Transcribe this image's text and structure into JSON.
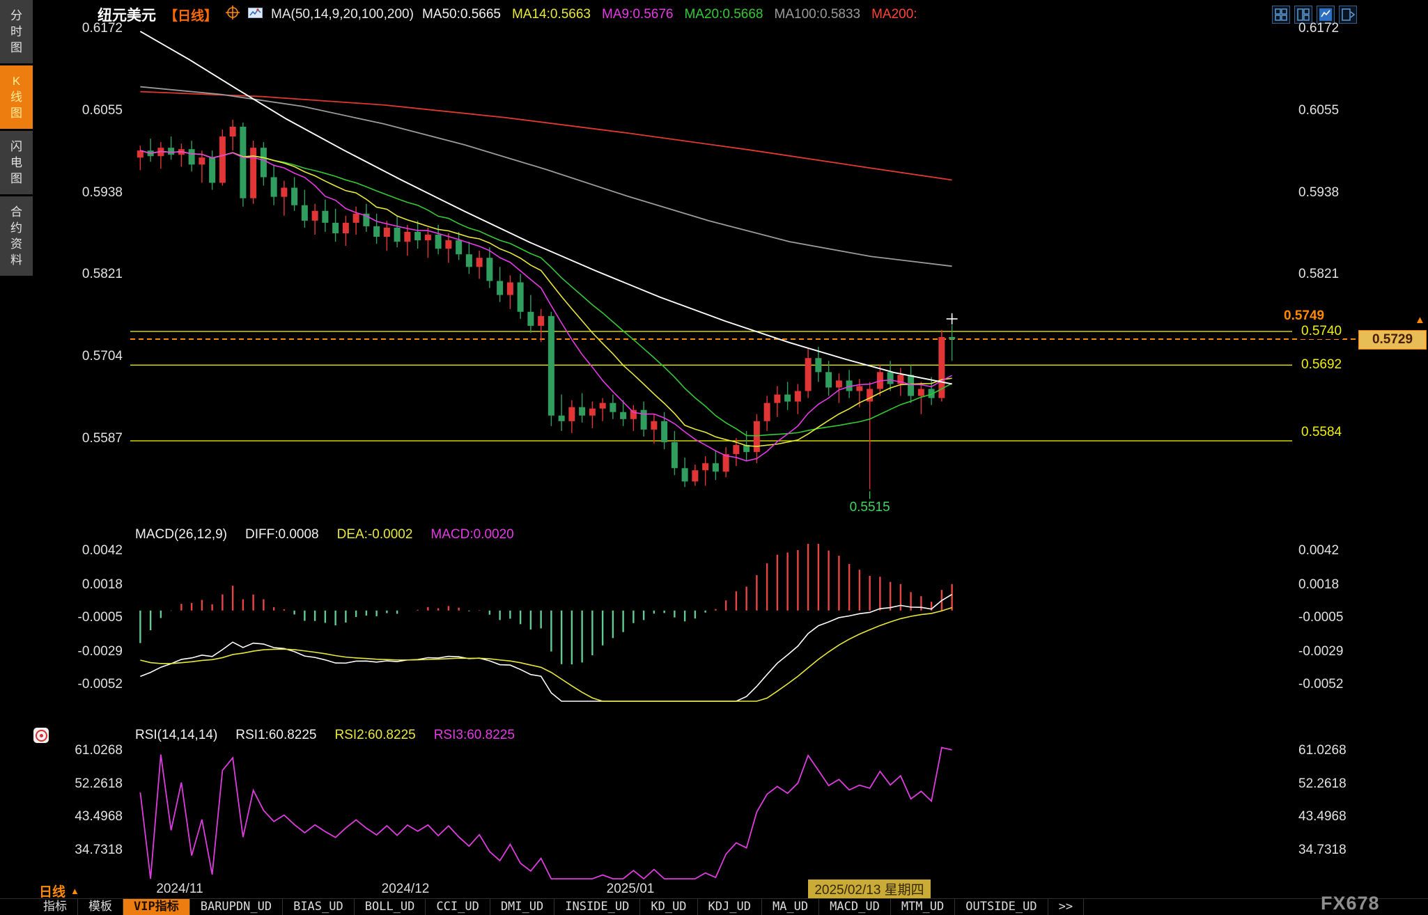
{
  "window": {
    "watermark": "FX678"
  },
  "sidebar": {
    "items": [
      {
        "label": "分时图",
        "active": false
      },
      {
        "label": "K线图",
        "active": true
      },
      {
        "label": "闪电图",
        "active": false
      },
      {
        "label": "合约资料",
        "active": false
      }
    ]
  },
  "header": {
    "symbol": "纽元美元",
    "period_tag": "【日线】",
    "ma_group_label": "MA(50,14,9,20,100,200)",
    "ma_items": [
      {
        "label": "MA50:0.5665",
        "color": "#f2f2f2"
      },
      {
        "label": "MA14:0.5663",
        "color": "#e8e83a"
      },
      {
        "label": "MA9:0.5676",
        "color": "#e53ae5"
      },
      {
        "label": "MA20:0.5668",
        "color": "#35c935"
      },
      {
        "label": "MA100:0.5833",
        "color": "#9b9b9b"
      },
      {
        "label": "MA200:",
        "color": "#ff4536"
      }
    ],
    "window_buttons": [
      {
        "icon": "layout-grid-icon"
      },
      {
        "icon": "layout-split-icon"
      },
      {
        "icon": "layout-active-icon"
      },
      {
        "icon": "layout-next-icon"
      }
    ]
  },
  "main_chart": {
    "y_ticks": [
      "0.6172",
      "0.6055",
      "0.5938",
      "0.5821",
      "0.5704",
      "0.5587"
    ],
    "levels": {
      "high_label": "0.5749",
      "resistance": "0.5740",
      "current": "0.5729",
      "pivot": "0.5692",
      "support": "0.5584",
      "low_label": "0.5515"
    }
  },
  "macd": {
    "title": "MACD(26,12,9)",
    "diff": "DIFF:0.0008",
    "dea": "DEA:-0.0002",
    "macd": "MACD:0.0020",
    "y_ticks": [
      "0.0042",
      "0.0018",
      "-0.0005",
      "-0.0029",
      "-0.0052"
    ]
  },
  "rsi": {
    "title": "RSI(14,14,14)",
    "rsi1": "RSI1:60.8225",
    "rsi2": "RSI2:60.8225",
    "rsi3": "RSI3:60.8225",
    "y_ticks": [
      "61.0268",
      "52.2618",
      "43.4968",
      "34.7318"
    ]
  },
  "time_axis": {
    "labels": [
      "2024/11",
      "2024/12",
      "2025/01"
    ],
    "current_date": "2025/02/13 星期四",
    "period_label": "日线",
    "period_arrow": "▲"
  },
  "toolbar": {
    "tabs": [
      {
        "label": "指标",
        "active": false
      },
      {
        "label": "模板",
        "active": false
      },
      {
        "label": "VIP指标",
        "active": true
      },
      {
        "label": "BARUPDN_UD",
        "active": false
      },
      {
        "label": "BIAS_UD",
        "active": false
      },
      {
        "label": "BOLL_UD",
        "active": false
      },
      {
        "label": "CCI_UD",
        "active": false
      },
      {
        "label": "DMI_UD",
        "active": false
      },
      {
        "label": "INSIDE_UD",
        "active": false
      },
      {
        "label": "KD_UD",
        "active": false
      },
      {
        "label": "KDJ_UD",
        "active": false
      },
      {
        "label": "MA_UD",
        "active": false
      },
      {
        "label": "MACD_UD",
        "active": false
      },
      {
        "label": "MTM_UD",
        "active": false
      },
      {
        "label": "OUTSIDE_UD",
        "active": false
      },
      {
        "label": ">>",
        "active": false
      }
    ]
  },
  "chart_data": {
    "type": "candlestick",
    "pair": "纽元美元 NZD/USD",
    "timeframe": "日线 daily",
    "candles": [
      [
        0.5988,
        0.6005,
        0.597,
        0.5998
      ],
      [
        0.5998,
        0.6015,
        0.5982,
        0.599
      ],
      [
        0.599,
        0.601,
        0.5972,
        0.6002
      ],
      [
        0.6002,
        0.6018,
        0.5985,
        0.5992
      ],
      [
        0.5992,
        0.6008,
        0.5975,
        0.6
      ],
      [
        0.6,
        0.6012,
        0.5968,
        0.5978
      ],
      [
        0.5978,
        0.5998,
        0.5952,
        0.5988
      ],
      [
        0.5988,
        0.5998,
        0.5942,
        0.5952
      ],
      [
        0.5952,
        0.6028,
        0.5948,
        0.6018
      ],
      [
        0.6018,
        0.6042,
        0.5998,
        0.6032
      ],
      [
        0.6032,
        0.6038,
        0.5918,
        0.593
      ],
      [
        0.593,
        0.6012,
        0.5922,
        0.6002
      ],
      [
        0.6002,
        0.601,
        0.5948,
        0.596
      ],
      [
        0.596,
        0.5978,
        0.592,
        0.5932
      ],
      [
        0.5932,
        0.5955,
        0.5905,
        0.5945
      ],
      [
        0.5945,
        0.596,
        0.5912,
        0.592
      ],
      [
        0.592,
        0.5942,
        0.5888,
        0.5898
      ],
      [
        0.5898,
        0.5922,
        0.5878,
        0.5912
      ],
      [
        0.5912,
        0.5928,
        0.5882,
        0.5895
      ],
      [
        0.5895,
        0.5915,
        0.5868,
        0.588
      ],
      [
        0.588,
        0.5905,
        0.5862,
        0.5895
      ],
      [
        0.5895,
        0.5918,
        0.5878,
        0.5908
      ],
      [
        0.5908,
        0.5922,
        0.5882,
        0.589
      ],
      [
        0.589,
        0.5908,
        0.5865,
        0.5875
      ],
      [
        0.5875,
        0.5898,
        0.5855,
        0.5888
      ],
      [
        0.5888,
        0.5905,
        0.586,
        0.5868
      ],
      [
        0.5868,
        0.5892,
        0.5848,
        0.5882
      ],
      [
        0.5882,
        0.5898,
        0.5858,
        0.587
      ],
      [
        0.587,
        0.5888,
        0.5845,
        0.5878
      ],
      [
        0.5878,
        0.5892,
        0.585,
        0.5858
      ],
      [
        0.5858,
        0.588,
        0.5838,
        0.587
      ],
      [
        0.587,
        0.5882,
        0.5842,
        0.585
      ],
      [
        0.585,
        0.5868,
        0.5822,
        0.5832
      ],
      [
        0.5832,
        0.5855,
        0.5815,
        0.5845
      ],
      [
        0.5845,
        0.586,
        0.5802,
        0.5812
      ],
      [
        0.5812,
        0.5832,
        0.5782,
        0.5792
      ],
      [
        0.5792,
        0.582,
        0.5772,
        0.581
      ],
      [
        0.581,
        0.5822,
        0.5758,
        0.5768
      ],
      [
        0.5768,
        0.5792,
        0.5738,
        0.5748
      ],
      [
        0.5748,
        0.5772,
        0.5725,
        0.5762
      ],
      [
        0.5762,
        0.5768,
        0.5605,
        0.562
      ],
      [
        0.562,
        0.565,
        0.5598,
        0.5612
      ],
      [
        0.5612,
        0.5642,
        0.5595,
        0.5632
      ],
      [
        0.5632,
        0.5652,
        0.561,
        0.562
      ],
      [
        0.562,
        0.564,
        0.5602,
        0.563
      ],
      [
        0.563,
        0.5645,
        0.5612,
        0.5638
      ],
      [
        0.5638,
        0.565,
        0.5615,
        0.5625
      ],
      [
        0.5625,
        0.5642,
        0.5605,
        0.5615
      ],
      [
        0.5615,
        0.5635,
        0.5598,
        0.5628
      ],
      [
        0.5628,
        0.564,
        0.559,
        0.56
      ],
      [
        0.56,
        0.5622,
        0.558,
        0.5612
      ],
      [
        0.5612,
        0.5625,
        0.5572,
        0.5582
      ],
      [
        0.5582,
        0.5598,
        0.5535,
        0.5545
      ],
      [
        0.5545,
        0.556,
        0.5518,
        0.5526
      ],
      [
        0.5526,
        0.555,
        0.552,
        0.5542
      ],
      [
        0.5542,
        0.5562,
        0.552,
        0.5552
      ],
      [
        0.5552,
        0.557,
        0.5528,
        0.554
      ],
      [
        0.554,
        0.5575,
        0.5532,
        0.5565
      ],
      [
        0.5565,
        0.5588,
        0.5548,
        0.5578
      ],
      [
        0.5578,
        0.5598,
        0.5555,
        0.5568
      ],
      [
        0.5568,
        0.5622,
        0.5552,
        0.5612
      ],
      [
        0.5612,
        0.5648,
        0.5598,
        0.5638
      ],
      [
        0.5638,
        0.5662,
        0.5618,
        0.565
      ],
      [
        0.565,
        0.5668,
        0.5628,
        0.564
      ],
      [
        0.564,
        0.5665,
        0.5622,
        0.5655
      ],
      [
        0.5655,
        0.5715,
        0.5645,
        0.5702
      ],
      [
        0.5702,
        0.5718,
        0.5668,
        0.5682
      ],
      [
        0.5682,
        0.5698,
        0.5648,
        0.566
      ],
      [
        0.566,
        0.568,
        0.5638,
        0.567
      ],
      [
        0.567,
        0.5685,
        0.5645,
        0.5655
      ],
      [
        0.5655,
        0.5672,
        0.5632,
        0.5662
      ],
      [
        0.564,
        0.5668,
        0.5515,
        0.5658
      ],
      [
        0.5658,
        0.5692,
        0.5648,
        0.5682
      ],
      [
        0.5682,
        0.5698,
        0.5655,
        0.5665
      ],
      [
        0.5665,
        0.5688,
        0.5648,
        0.5678
      ],
      [
        0.5678,
        0.5692,
        0.5638,
        0.5648
      ],
      [
        0.5648,
        0.5668,
        0.5622,
        0.5658
      ],
      [
        0.5658,
        0.5675,
        0.5635,
        0.5645
      ],
      [
        0.5645,
        0.5742,
        0.564,
        0.5732
      ],
      [
        0.5732,
        0.5749,
        0.5698,
        0.5729
      ]
    ],
    "ma_computed": [
      {
        "key": "ma20",
        "period": 20,
        "color": "#35c935"
      },
      {
        "key": "ma14",
        "period": 14,
        "color": "#e8e83a"
      },
      {
        "key": "ma9",
        "period": 9,
        "color": "#e53ae5"
      }
    ],
    "ma_paths": [
      {
        "key": "ma200",
        "color": "#e03a30",
        "width": 1.8,
        "points": [
          [
            0,
            0.6082
          ],
          [
            0.15,
            0.6075
          ],
          [
            0.3,
            0.6063
          ],
          [
            0.45,
            0.6045
          ],
          [
            0.6,
            0.6023
          ],
          [
            0.75,
            0.5999
          ],
          [
            0.9,
            0.5973
          ],
          [
            1,
            0.5956
          ]
        ]
      },
      {
        "key": "ma100",
        "color": "#9b9b9b",
        "width": 1.8,
        "points": [
          [
            0,
            0.6089
          ],
          [
            0.1,
            0.6078
          ],
          [
            0.2,
            0.6061
          ],
          [
            0.3,
            0.6036
          ],
          [
            0.4,
            0.6006
          ],
          [
            0.5,
            0.5971
          ],
          [
            0.6,
            0.5933
          ],
          [
            0.7,
            0.5898
          ],
          [
            0.8,
            0.5868
          ],
          [
            0.9,
            0.5847
          ],
          [
            1,
            0.5833
          ]
        ]
      },
      {
        "key": "ma50",
        "color": "#ffffff",
        "width": 1.9,
        "points": [
          [
            0,
            0.6168
          ],
          [
            0.06,
            0.6128
          ],
          [
            0.12,
            0.6085
          ],
          [
            0.18,
            0.6043
          ],
          [
            0.25,
            0.5999
          ],
          [
            0.32,
            0.5957
          ],
          [
            0.4,
            0.5911
          ],
          [
            0.48,
            0.5867
          ],
          [
            0.56,
            0.5827
          ],
          [
            0.64,
            0.5789
          ],
          [
            0.72,
            0.5755
          ],
          [
            0.8,
            0.5724
          ],
          [
            0.87,
            0.57
          ],
          [
            0.93,
            0.5681
          ],
          [
            1,
            0.5665
          ]
        ]
      }
    ],
    "macd_params": {
      "fast": 12,
      "slow": 26,
      "signal": 9
    },
    "rsi_params": {
      "period": 14
    },
    "colors": {
      "up": "#e23535",
      "down": "#2f9e5f",
      "macd_up_bar": "#e84545",
      "macd_down_bar": "#5fcd92",
      "diff_line": "#ffffff",
      "dea_line": "#e8e83a",
      "rsi_line": "#dd3ddd",
      "level_line": "#e8e800",
      "current_line": "#ff8a00"
    }
  }
}
